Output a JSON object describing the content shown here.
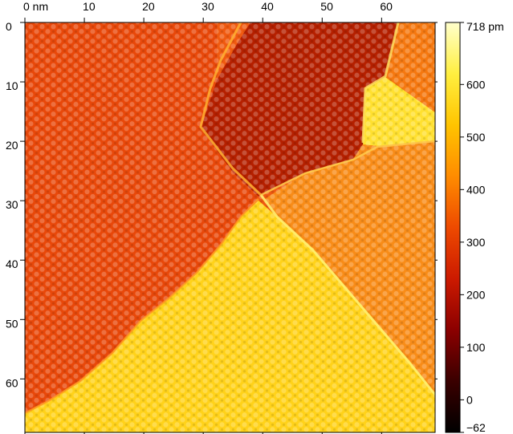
{
  "image": {
    "description_kind": "stm-topograph",
    "colormap": {
      "name": "afmhot",
      "stops": [
        "#000000",
        "#3a0000",
        "#8b0000",
        "#cc1a00",
        "#ee4a00",
        "#ff8c00",
        "#ffc400",
        "#ffef40",
        "#ffffcc"
      ]
    },
    "x_axis": {
      "ticks": [
        "0 nm",
        "10",
        "20",
        "30",
        "40",
        "50",
        "60"
      ],
      "tick_values": [
        0,
        10,
        20,
        30,
        40,
        50,
        60
      ],
      "range": [
        0,
        69
      ]
    },
    "y_axis": {
      "ticks": [
        "0",
        "10",
        "20",
        "30",
        "40",
        "50",
        "60"
      ],
      "tick_values": [
        0,
        10,
        20,
        30,
        40,
        50,
        60
      ],
      "range": [
        0,
        69
      ]
    },
    "colorbar": {
      "ticks": [
        "718 pm",
        "600",
        "500",
        "400",
        "300",
        "200",
        "100",
        "0",
        "−62"
      ],
      "tick_values": [
        718,
        600,
        500,
        400,
        300,
        200,
        100,
        0,
        -62
      ],
      "range": [
        -62,
        718
      ]
    }
  }
}
